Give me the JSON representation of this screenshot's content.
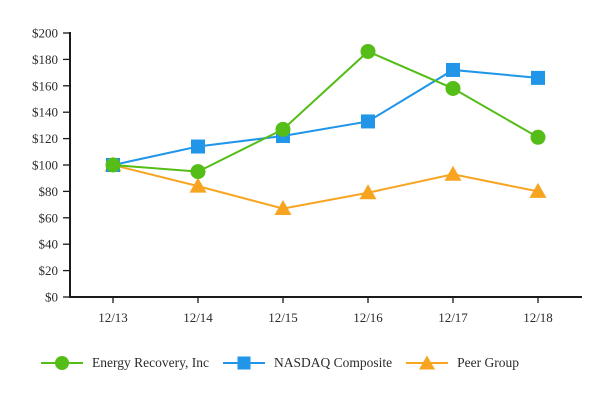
{
  "chart_data": {
    "type": "line",
    "title": "",
    "xlabel": "",
    "ylabel": "",
    "categories": [
      "12/13",
      "12/14",
      "12/15",
      "12/16",
      "12/17",
      "12/18"
    ],
    "series": [
      {
        "name": "Energy Recovery, Inc",
        "marker": "circle",
        "color": "#54bd17",
        "values": [
          100,
          95,
          127,
          186,
          158,
          121
        ]
      },
      {
        "name": "NASDAQ Composite",
        "marker": "square",
        "color": "#2196e8",
        "values": [
          100,
          114,
          122,
          133,
          172,
          166
        ]
      },
      {
        "name": "Peer Group",
        "marker": "triangle",
        "color": "#f7a521",
        "values": [
          100,
          84,
          67,
          79,
          93,
          80
        ]
      }
    ],
    "ylim": [
      0,
      200
    ],
    "y_tick_values": [
      0,
      20,
      40,
      60,
      80,
      100,
      120,
      140,
      160,
      180,
      200
    ],
    "y_tick_labels": [
      "$0",
      "$20",
      "$40",
      "$60",
      "$80",
      "$100",
      "$120",
      "$140",
      "$160",
      "$180",
      "$200"
    ],
    "grid": false,
    "legend_position": "bottom",
    "axis_color": "#1a1a1a",
    "text_color": "#2b2b2b",
    "background_color": "#ffffff"
  }
}
